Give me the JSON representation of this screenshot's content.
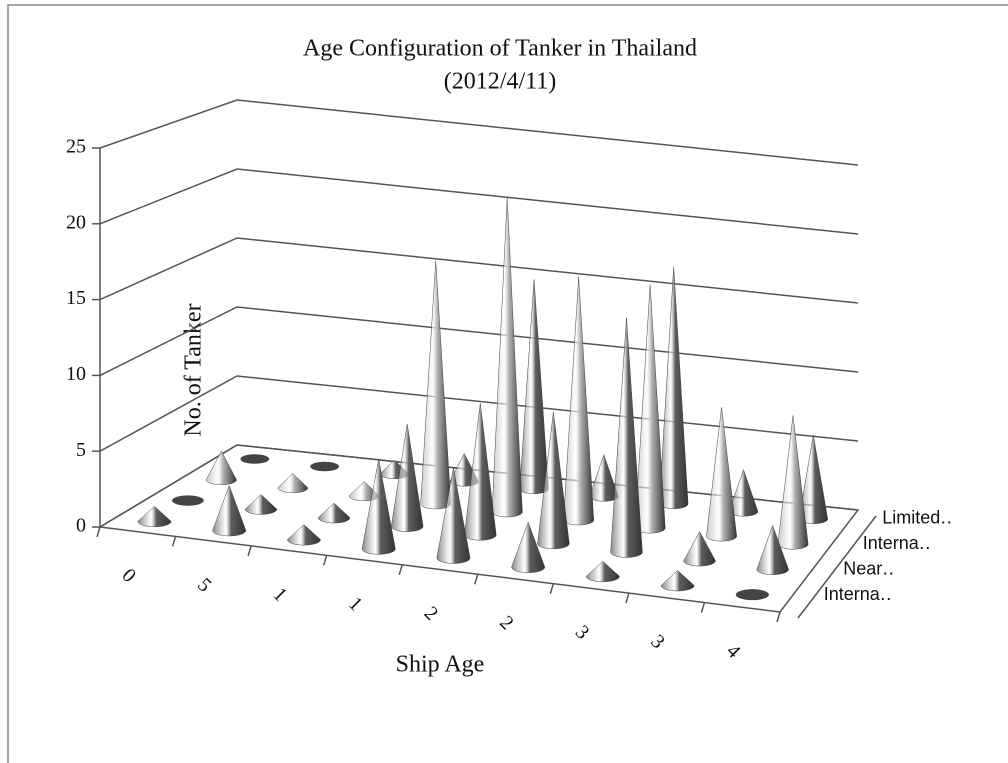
{
  "chart_data": {
    "type": "cone3d",
    "title": "Age Configuration of Tanker in Thailand",
    "subtitle": "(2012/4/11)",
    "x_label": "Ship Age",
    "y_label": "No. of Tanker",
    "categories": [
      "0",
      "5",
      "1",
      "1",
      "2",
      "2",
      "3",
      "3",
      "4"
    ],
    "series": [
      {
        "name": "Interna‥",
        "color": "#5e5e5e",
        "values": [
          1,
          3,
          1,
          6,
          6,
          3,
          1,
          1,
          0
        ]
      },
      {
        "name": "Near‥",
        "color": "#5e5e5e",
        "values": [
          0,
          1,
          1,
          7,
          9,
          9,
          16,
          2,
          3
        ]
      },
      {
        "name": "Interna‥",
        "color": "#b4b4b4",
        "values": [
          2,
          1,
          1,
          17,
          22,
          17,
          17,
          9,
          9
        ]
      },
      {
        "name": "Limited‥",
        "color": "#5e5e5e",
        "values": [
          0,
          0,
          1,
          2,
          15,
          3,
          17,
          3,
          6
        ]
      }
    ],
    "ylim": [
      0,
      25
    ],
    "yticks": [
      0,
      5,
      10,
      15,
      20,
      25
    ],
    "grid": true
  }
}
